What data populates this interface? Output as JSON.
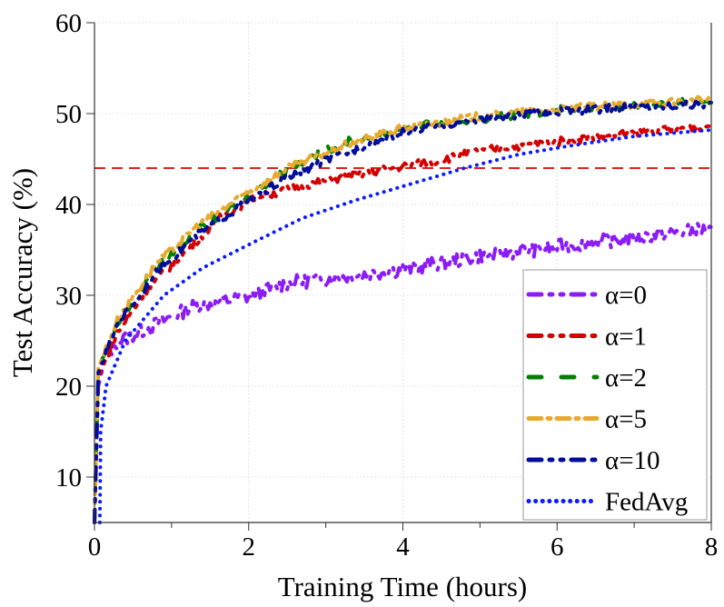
{
  "chart_data": {
    "type": "line",
    "title": "",
    "xlabel": "Training Time (hours)",
    "ylabel": "Test Accuracy (%)",
    "xlim": [
      0,
      8
    ],
    "ylim": [
      5,
      60
    ],
    "xticks": [
      0,
      2,
      4,
      6,
      8
    ],
    "yticks": [
      10,
      20,
      30,
      40,
      50,
      60
    ],
    "grid": true,
    "legend_position": "bottom-right",
    "reference_line": {
      "y": 44,
      "color": "#e02020",
      "style": "dashed"
    },
    "series": [
      {
        "name": "α=0",
        "color": "#8b1cf6",
        "dash": "dash-dot-dot",
        "x": [
          0,
          0.05,
          0.15,
          0.3,
          0.8,
          1.3,
          2,
          2.5,
          3,
          4,
          5,
          6,
          7,
          8
        ],
        "y": [
          5,
          20,
          23.5,
          25,
          27,
          29,
          30,
          31.5,
          32,
          33,
          34.5,
          35.5,
          36.5,
          37.5
        ]
      },
      {
        "name": "α=1",
        "color": "#d40000",
        "dash": "dash-dot-dot",
        "x": [
          0,
          0.05,
          0.3,
          0.7,
          1.2,
          1.6,
          2,
          2.6,
          3.2,
          3.8,
          4.5,
          5,
          6,
          7,
          8
        ],
        "y": [
          5,
          21,
          26,
          31,
          35,
          38.5,
          40.5,
          42,
          43,
          44,
          45,
          46,
          47,
          48,
          48.8
        ]
      },
      {
        "name": "α=2",
        "color": "#008000",
        "dash": "dash",
        "x": [
          0,
          0.05,
          0.3,
          0.8,
          1.3,
          2,
          2.5,
          3.2,
          4,
          5,
          6,
          7,
          8
        ],
        "y": [
          5,
          22,
          27,
          33,
          37,
          41,
          44,
          46.8,
          48.5,
          49.5,
          50.5,
          51,
          51.5
        ]
      },
      {
        "name": "α=5",
        "color": "#e8a92c",
        "dash": "dash-dot",
        "x": [
          0,
          0.05,
          0.3,
          0.8,
          1.3,
          2,
          2.5,
          3.2,
          4,
          5,
          6,
          7,
          8
        ],
        "y": [
          5,
          22,
          27.5,
          33.5,
          37.5,
          41.5,
          44,
          46.5,
          48.5,
          49.8,
          50.6,
          51.1,
          51.6
        ]
      },
      {
        "name": "α=10",
        "color": "#000c9a",
        "dash": "dash-dot-dot",
        "x": [
          0,
          0.05,
          0.3,
          0.8,
          1.3,
          2,
          2.5,
          3,
          4,
          5,
          6,
          7,
          8
        ],
        "y": [
          5,
          21.5,
          27,
          32.5,
          36.5,
          40.5,
          43,
          45,
          48,
          49.5,
          50.3,
          50.8,
          51.2
        ]
      },
      {
        "name": "FedAvg",
        "color": "#0a1cff",
        "dash": "dotted",
        "x": [
          0.07,
          0.08,
          0.15,
          0.4,
          0.9,
          1.4,
          2.1,
          2.7,
          3.4,
          4.2,
          4.8,
          5.5,
          6.2,
          7,
          8
        ],
        "y": [
          5,
          15,
          20,
          25,
          30,
          33,
          36,
          38.5,
          40.5,
          42.5,
          44,
          45.5,
          46.5,
          47.5,
          48.2
        ]
      }
    ]
  }
}
